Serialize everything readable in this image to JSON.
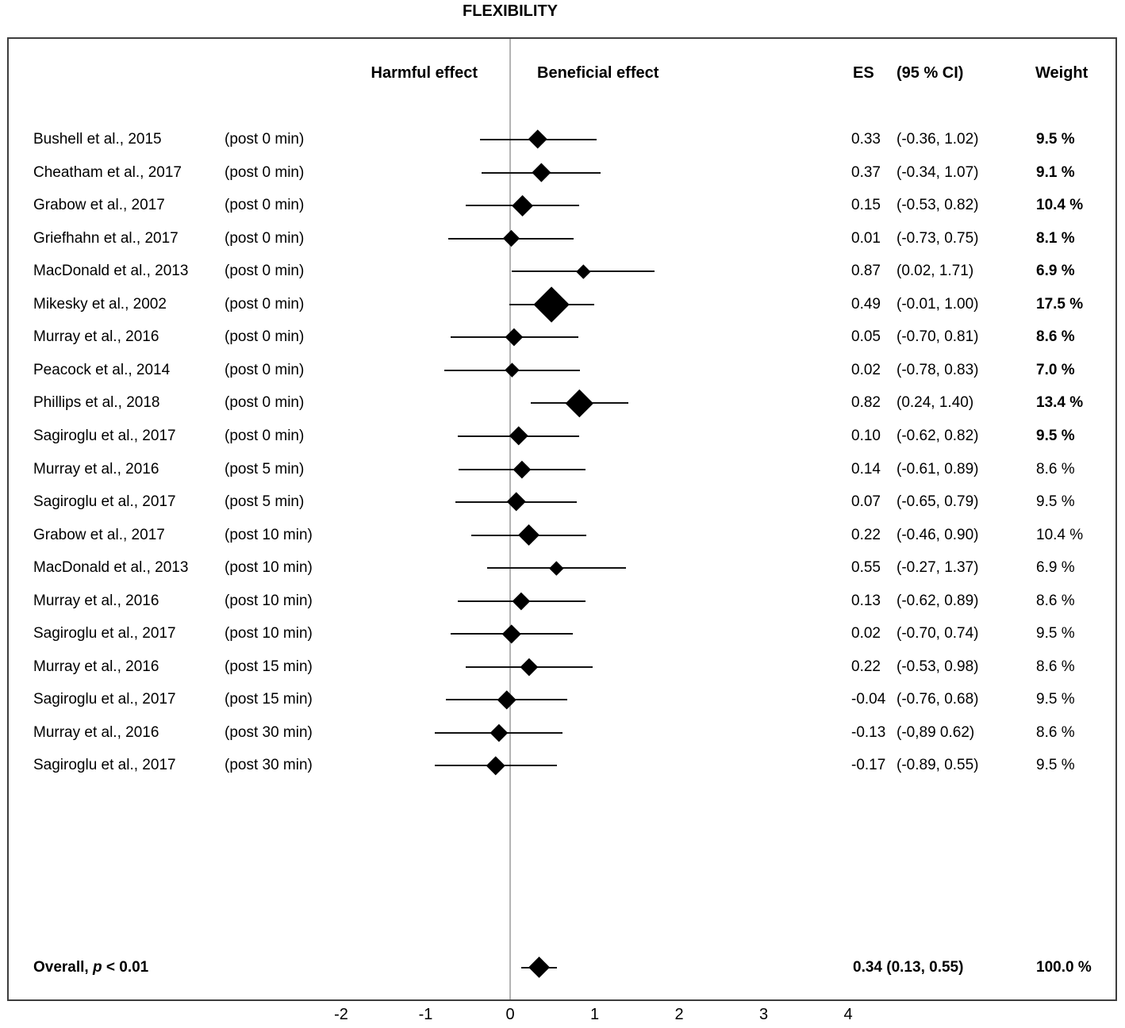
{
  "title": "FLEXIBILITY",
  "headers": {
    "harmful": "Harmful effect",
    "beneficial": "Beneficial effect",
    "es": "ES",
    "ci": "(95 % CI)",
    "weight": "Weight"
  },
  "overall": {
    "label_prefix": "Overall, ",
    "label_p": "p",
    "label_suffix": " < 0.01",
    "es_ci_text": "0.34 (0.13, 0.55)",
    "weight_text": "100.0 %"
  },
  "chart_data": {
    "type": "forest",
    "title": "FLEXIBILITY",
    "x_ticks": [
      "-2",
      "-1",
      "0",
      "1",
      "2",
      "3",
      "4"
    ],
    "x_tick_values": [
      -2,
      -1,
      0,
      1,
      2,
      3,
      4
    ],
    "xlim": [
      -2.5,
      4.5
    ],
    "axis_labels": {
      "left": "Harmful effect",
      "right": "Beneficial effect"
    },
    "columns": [
      "ES",
      "(95 % CI)",
      "Weight"
    ],
    "studies": [
      {
        "study": "Bushell et al., 2015",
        "time": "(post 0 min)",
        "es": 0.33,
        "ci_low": -0.36,
        "ci_high": 1.02,
        "es_text": "0.33",
        "ci_text": "(-0.36, 1.02)",
        "weight": 9.5,
        "weight_text": "9.5 %",
        "bold_weight": true
      },
      {
        "study": "Cheatham et al., 2017",
        "time": "(post 0 min)",
        "es": 0.37,
        "ci_low": -0.34,
        "ci_high": 1.07,
        "es_text": "0.37",
        "ci_text": "(-0.34, 1.07)",
        "weight": 9.1,
        "weight_text": "9.1 %",
        "bold_weight": true
      },
      {
        "study": "Grabow et al., 2017",
        "time": "(post 0 min)",
        "es": 0.15,
        "ci_low": -0.53,
        "ci_high": 0.82,
        "es_text": "0.15",
        "ci_text": "(-0.53, 0.82)",
        "weight": 10.4,
        "weight_text": "10.4 %",
        "bold_weight": true
      },
      {
        "study": "Griefhahn et al., 2017",
        "time": "(post 0 min)",
        "es": 0.01,
        "ci_low": -0.73,
        "ci_high": 0.75,
        "es_text": "0.01",
        "ci_text": "(-0.73, 0.75)",
        "weight": 8.1,
        "weight_text": "8.1 %",
        "bold_weight": true
      },
      {
        "study": "MacDonald et al., 2013",
        "time": "(post 0 min)",
        "es": 0.87,
        "ci_low": 0.02,
        "ci_high": 1.71,
        "es_text": "0.87",
        "ci_text": "(0.02, 1.71)",
        "weight": 6.9,
        "weight_text": "6.9 %",
        "bold_weight": true
      },
      {
        "study": "Mikesky et al., 2002",
        "time": "(post 0 min)",
        "es": 0.49,
        "ci_low": -0.01,
        "ci_high": 1.0,
        "es_text": "0.49",
        "ci_text": "(-0.01, 1.00)",
        "weight": 17.5,
        "weight_text": "17.5 %",
        "bold_weight": true
      },
      {
        "study": "Murray et al., 2016",
        "time": "(post 0 min)",
        "es": 0.05,
        "ci_low": -0.7,
        "ci_high": 0.81,
        "es_text": "0.05",
        "ci_text": "(-0.70, 0.81)",
        "weight": 8.6,
        "weight_text": "8.6 %",
        "bold_weight": true
      },
      {
        "study": "Peacock et al., 2014",
        "time": "(post 0 min)",
        "es": 0.02,
        "ci_low": -0.78,
        "ci_high": 0.83,
        "es_text": "0.02",
        "ci_text": "(-0.78, 0.83)",
        "weight": 7.0,
        "weight_text": "7.0 %",
        "bold_weight": true
      },
      {
        "study": "Phillips et al., 2018",
        "time": "(post 0 min)",
        "es": 0.82,
        "ci_low": 0.24,
        "ci_high": 1.4,
        "es_text": "0.82",
        "ci_text": "(0.24, 1.40)",
        "weight": 13.4,
        "weight_text": "13.4 %",
        "bold_weight": true
      },
      {
        "study": "Sagiroglu et al., 2017",
        "time": "(post 0 min)",
        "es": 0.1,
        "ci_low": -0.62,
        "ci_high": 0.82,
        "es_text": "0.10",
        "ci_text": "(-0.62, 0.82)",
        "weight": 9.5,
        "weight_text": "9.5 %",
        "bold_weight": true
      },
      {
        "study": "Murray et al., 2016",
        "time": "(post 5 min)",
        "es": 0.14,
        "ci_low": -0.61,
        "ci_high": 0.89,
        "es_text": "0.14",
        "ci_text": "(-0.61, 0.89)",
        "weight": 8.6,
        "weight_text": "8.6 %",
        "bold_weight": false
      },
      {
        "study": "Sagiroglu et al., 2017",
        "time": "(post 5 min)",
        "es": 0.07,
        "ci_low": -0.65,
        "ci_high": 0.79,
        "es_text": "0.07",
        "ci_text": "(-0.65, 0.79)",
        "weight": 9.5,
        "weight_text": "9.5 %",
        "bold_weight": false
      },
      {
        "study": "Grabow et al., 2017",
        "time": "(post 10 min)",
        "es": 0.22,
        "ci_low": -0.46,
        "ci_high": 0.9,
        "es_text": "0.22",
        "ci_text": "(-0.46, 0.90)",
        "weight": 10.4,
        "weight_text": "10.4 %",
        "bold_weight": false
      },
      {
        "study": "MacDonald et al., 2013",
        "time": "(post 10 min)",
        "es": 0.55,
        "ci_low": -0.27,
        "ci_high": 1.37,
        "es_text": "0.55",
        "ci_text": "(-0.27, 1.37)",
        "weight": 6.9,
        "weight_text": "6.9 %",
        "bold_weight": false
      },
      {
        "study": "Murray et al., 2016",
        "time": "(post 10 min)",
        "es": 0.13,
        "ci_low": -0.62,
        "ci_high": 0.89,
        "es_text": "0.13",
        "ci_text": "(-0.62, 0.89)",
        "weight": 8.6,
        "weight_text": "8.6 %",
        "bold_weight": false
      },
      {
        "study": "Sagiroglu et al., 2017",
        "time": "(post 10 min)",
        "es": 0.02,
        "ci_low": -0.7,
        "ci_high": 0.74,
        "es_text": "0.02",
        "ci_text": "(-0.70, 0.74)",
        "weight": 9.5,
        "weight_text": "9.5 %",
        "bold_weight": false
      },
      {
        "study": "Murray et al., 2016",
        "time": "(post 15 min)",
        "es": 0.22,
        "ci_low": -0.53,
        "ci_high": 0.98,
        "es_text": "0.22",
        "ci_text": "(-0.53, 0.98)",
        "weight": 8.6,
        "weight_text": "8.6 %",
        "bold_weight": false
      },
      {
        "study": "Sagiroglu et al., 2017",
        "time": "(post 15 min)",
        "es": -0.04,
        "ci_low": -0.76,
        "ci_high": 0.68,
        "es_text": "-0.04",
        "ci_text": "(-0.76, 0.68)",
        "weight": 9.5,
        "weight_text": "9.5 %",
        "bold_weight": false
      },
      {
        "study": "Murray et al., 2016",
        "time": "(post 30 min)",
        "es": -0.13,
        "ci_low": -0.89,
        "ci_high": 0.62,
        "es_text": "-0.13",
        "ci_text": "(-0,89 0.62)",
        "weight": 8.6,
        "weight_text": "8.6 %",
        "bold_weight": false
      },
      {
        "study": "Sagiroglu et al., 2017",
        "time": "(post 30 min)",
        "es": -0.17,
        "ci_low": -0.89,
        "ci_high": 0.55,
        "es_text": "-0.17",
        "ci_text": "(-0.89, 0.55)",
        "weight": 9.5,
        "weight_text": "9.5 %",
        "bold_weight": false
      }
    ],
    "overall": {
      "label": "Overall, p < 0.01",
      "es": 0.34,
      "ci_low": 0.13,
      "ci_high": 0.55,
      "es_ci_text": "0.34 (0.13, 0.55)",
      "weight": 100.0,
      "weight_text": "100.0 %"
    }
  }
}
